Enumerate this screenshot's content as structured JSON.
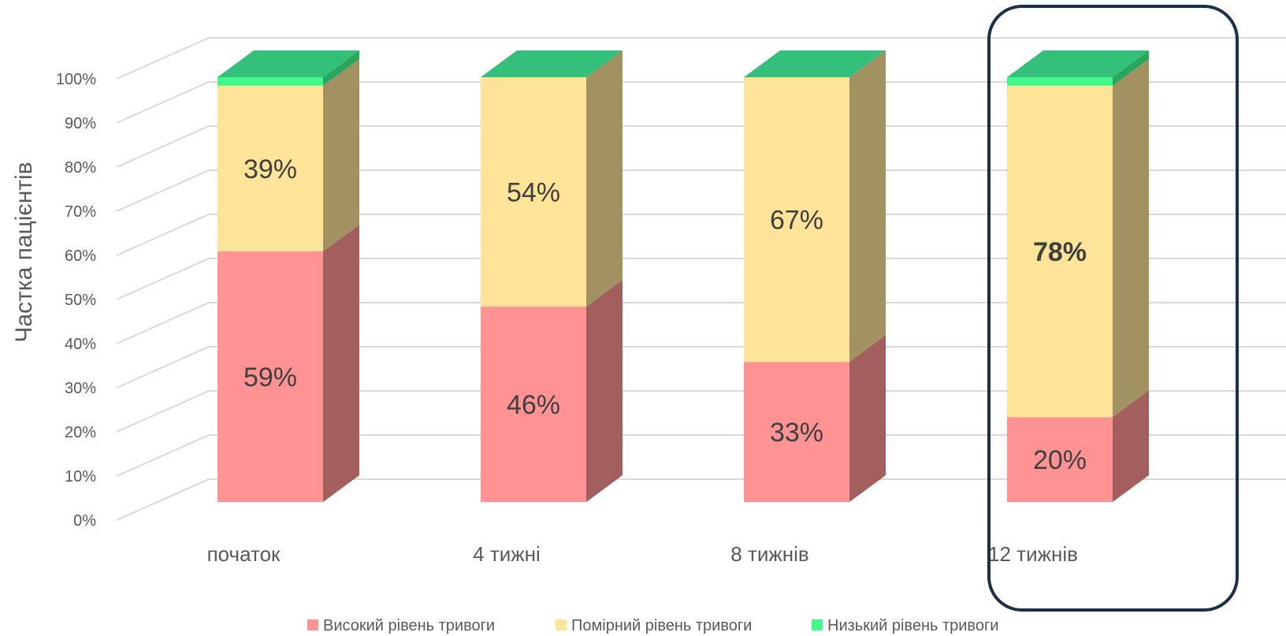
{
  "chart_data": {
    "type": "bar",
    "stacked": true,
    "three_d": true,
    "ylabel": "Частка пацієнтів",
    "xlabel": "",
    "ylim": [
      0,
      100
    ],
    "y_ticks": [
      "0%",
      "10%",
      "20%",
      "30%",
      "40%",
      "50%",
      "60%",
      "70%",
      "80%",
      "90%",
      "100%"
    ],
    "grid": true,
    "legend_position": "bottom",
    "categories": [
      "початок",
      "4 тижні",
      "8 тижнів",
      "12 тижнів"
    ],
    "highlighted_category": "12 тижнів",
    "series": [
      {
        "name": "Високий рівень тривоги",
        "values": [
          59,
          46,
          33,
          20
        ],
        "labels": [
          "59%",
          "46%",
          "33%",
          "20%"
        ],
        "color": "#ff9393",
        "side_color": "#a35e5e"
      },
      {
        "name": "Помірний рівень тривоги",
        "values": [
          39,
          54,
          67,
          78
        ],
        "labels": [
          "39%",
          "54%",
          "67%",
          "78%"
        ],
        "bold_label_index": 3,
        "color": "#fde498",
        "side_color": "#a29161"
      },
      {
        "name": "Низький рівень тривоги",
        "values": [
          2,
          0,
          0,
          2
        ],
        "labels": [
          "",
          "",
          "",
          ""
        ],
        "color": "#40f88c",
        "side_color": "#29a55d"
      }
    ],
    "top_color": "#34c07a"
  }
}
